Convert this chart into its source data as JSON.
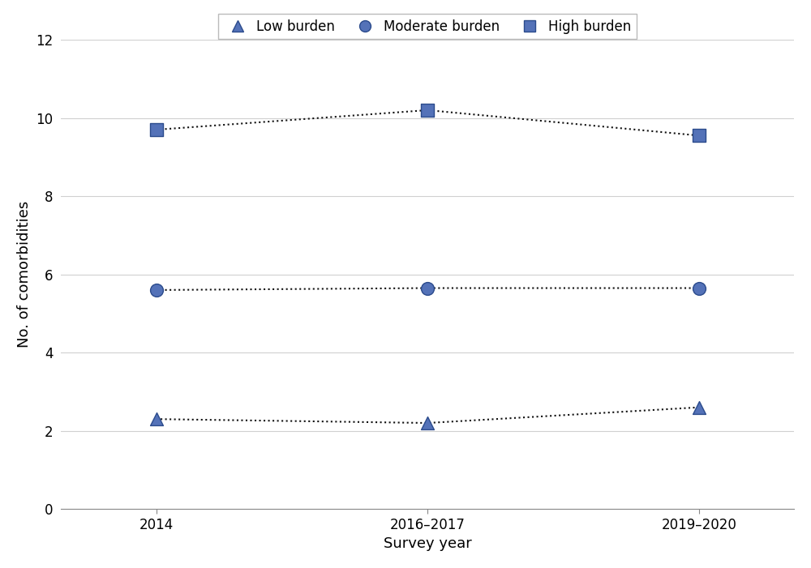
{
  "series": [
    {
      "key": "low_burden",
      "label": "Low burden",
      "x": [
        0,
        1,
        2
      ],
      "y": [
        2.3,
        2.2,
        2.6
      ],
      "marker": "^",
      "markersize": 130
    },
    {
      "key": "moderate_burden",
      "label": "Moderate burden",
      "x": [
        0,
        1,
        2
      ],
      "y": [
        5.6,
        5.65,
        5.65
      ],
      "marker": "o",
      "markersize": 130
    },
    {
      "key": "high_burden",
      "label": "High burden",
      "x": [
        0,
        1,
        2
      ],
      "y": [
        9.7,
        10.2,
        9.55
      ],
      "marker": "s",
      "markersize": 130
    }
  ],
  "xtick_labels": [
    "2014",
    "2016–2017",
    "2019–2020"
  ],
  "xlabel": "Survey year",
  "ylabel": "No. of comorbidities",
  "ylim": [
    0,
    12
  ],
  "yticks": [
    0,
    2,
    4,
    6,
    8,
    10,
    12
  ],
  "xlim": [
    -0.35,
    2.35
  ],
  "marker_face_color": "#5472b8",
  "marker_edge_color": "#2b4b8c",
  "line_color": "#111111",
  "background_color": "#ffffff",
  "grid_color": "#d0d0d0",
  "legend_marker_size": 10,
  "xlabel_fontsize": 13,
  "ylabel_fontsize": 13,
  "tick_fontsize": 12,
  "legend_fontsize": 12
}
